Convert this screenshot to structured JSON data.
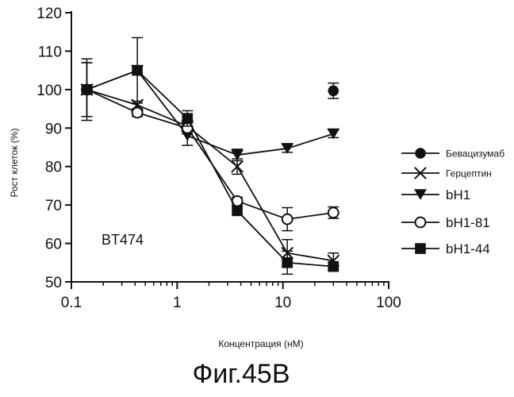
{
  "chart_data": {
    "type": "line",
    "xscale": "log",
    "xlim": [
      0.1,
      100
    ],
    "ylim": [
      50,
      120
    ],
    "xticks": [
      0.1,
      1,
      10,
      100
    ],
    "xtick_labels": [
      "0.1",
      "1",
      "10",
      "100"
    ],
    "yticks": [
      50,
      60,
      70,
      80,
      90,
      100,
      110,
      120
    ],
    "ytick_labels": [
      "50",
      "60",
      "70",
      "80",
      "90",
      "100",
      "110",
      "120"
    ],
    "xlabel": "Концентрация (нМ)",
    "ylabel": "Рост клеток (%)",
    "annotation": "BT474",
    "caption": "Фиг.45B",
    "grid": false,
    "legend": "right",
    "series": [
      {
        "name": "Бевацизумаб",
        "marker": "filled-circle",
        "connected": false,
        "x": [
          30
        ],
        "y": [
          99.7
        ],
        "err": [
          2
        ]
      },
      {
        "name": "Герцептин",
        "marker": "x",
        "connected": true,
        "x": [
          0.14,
          0.42,
          1.25,
          3.7,
          11,
          30
        ],
        "y": [
          100,
          96,
          90.5,
          80,
          57.5,
          55.5
        ],
        "err": [
          7,
          1,
          1,
          2,
          3.5,
          2
        ]
      },
      {
        "name": "bH1",
        "marker": "filled-triangle-down",
        "connected": true,
        "x": [
          0.14,
          0.42,
          1.25,
          3.7,
          11,
          30
        ],
        "y": [
          100,
          105,
          88,
          83,
          84.7,
          88.5
        ],
        "err": [
          8,
          8.5,
          2.5,
          1.5,
          1,
          1
        ]
      },
      {
        "name": "bH1-81",
        "marker": "open-circle",
        "connected": true,
        "x": [
          0.14,
          0.42,
          1.25,
          3.7,
          11,
          30
        ],
        "y": [
          100,
          94,
          90,
          71,
          66.3,
          68
        ],
        "err": [
          1,
          1,
          1.5,
          1,
          3,
          1.5
        ]
      },
      {
        "name": "bH1-44",
        "marker": "filled-square",
        "connected": true,
        "x": [
          0.14,
          0.42,
          1.25,
          3.7,
          11,
          30
        ],
        "y": [
          100,
          105,
          92.5,
          68.5,
          55,
          54
        ],
        "err": [
          7,
          1,
          2,
          1,
          3,
          1
        ]
      }
    ]
  }
}
